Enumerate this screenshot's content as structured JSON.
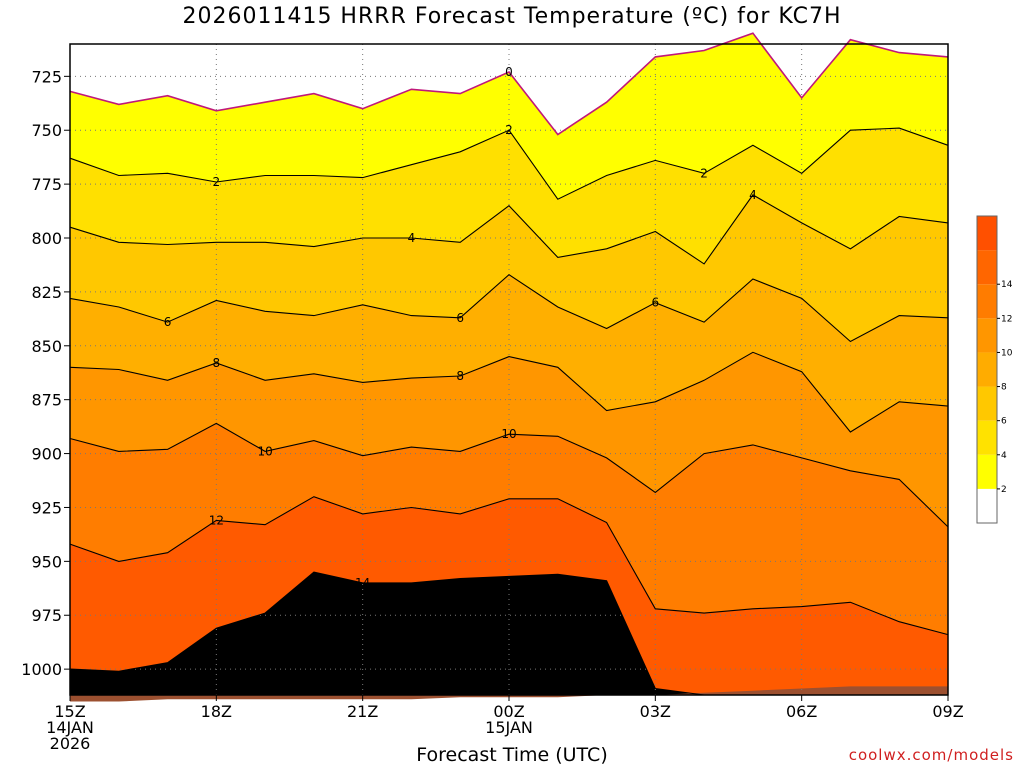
{
  "title": "2026011415 HRRR Forecast Temperature (ºC) for KC7H",
  "xlabel": "Forecast Time (UTC)",
  "credit": "coolwx.com/models",
  "chart_data": {
    "type": "contour",
    "title": "2026011415 HRRR Forecast Temperature (ºC) for KC7H",
    "xlabel": "Forecast Time (UTC)",
    "ylabel": "",
    "x_hours": [
      0,
      1,
      2,
      3,
      4,
      5,
      6,
      7,
      8,
      9,
      10,
      11,
      12,
      13,
      14,
      15,
      16,
      17,
      18
    ],
    "ylim": [
      1012,
      710
    ],
    "xlim": [
      0,
      18
    ],
    "y_ticks": [
      725,
      750,
      775,
      800,
      825,
      850,
      875,
      900,
      925,
      950,
      975,
      1000
    ],
    "x_ticks": [
      {
        "h": 0,
        "lines": [
          "15Z",
          "14JAN",
          "2026"
        ]
      },
      {
        "h": 3,
        "lines": [
          "18Z"
        ]
      },
      {
        "h": 6,
        "lines": [
          "21Z"
        ]
      },
      {
        "h": 9,
        "lines": [
          "00Z",
          "15JAN"
        ]
      },
      {
        "h": 12,
        "lines": [
          "03Z"
        ]
      },
      {
        "h": 15,
        "lines": [
          "06Z"
        ]
      },
      {
        "h": 18,
        "lines": [
          "09Z"
        ]
      }
    ],
    "grid": true,
    "contour_levels": [
      0,
      2,
      4,
      6,
      8,
      10,
      12,
      14
    ],
    "contours": [
      {
        "level": 0,
        "p": [
          732,
          738,
          734,
          741,
          737,
          733,
          740,
          731,
          733,
          723,
          752,
          737,
          716,
          713,
          705,
          735,
          708,
          714,
          716
        ]
      },
      {
        "level": 2,
        "p": [
          763,
          771,
          770,
          774,
          771,
          771,
          772,
          766,
          760,
          750,
          782,
          771,
          764,
          770,
          757,
          770,
          750,
          749,
          757
        ]
      },
      {
        "level": 4,
        "p": [
          795,
          802,
          803,
          802,
          802,
          804,
          800,
          800,
          802,
          785,
          809,
          805,
          797,
          812,
          780,
          793,
          805,
          790,
          793
        ]
      },
      {
        "level": 6,
        "p": [
          828,
          832,
          839,
          829,
          834,
          836,
          831,
          836,
          837,
          817,
          832,
          842,
          830,
          839,
          819,
          828,
          848,
          836,
          837
        ]
      },
      {
        "level": 8,
        "p": [
          860,
          861,
          866,
          858,
          866,
          863,
          867,
          865,
          864,
          855,
          860,
          880,
          876,
          866,
          853,
          862,
          890,
          876,
          878
        ]
      },
      {
        "level": 10,
        "p": [
          893,
          899,
          898,
          886,
          899,
          894,
          901,
          897,
          899,
          891,
          892,
          902,
          918,
          900,
          896,
          902,
          908,
          912,
          934
        ]
      },
      {
        "level": 12,
        "p": [
          942,
          950,
          946,
          931,
          933,
          920,
          928,
          925,
          928,
          921,
          921,
          932,
          972,
          974,
          972,
          971,
          969,
          978,
          984
        ]
      },
      {
        "level": 14,
        "p": [
          1000,
          1001,
          997,
          981,
          974,
          955,
          960,
          960,
          958,
          957,
          956,
          959,
          1009,
          1012,
          1012,
          1012,
          1012,
          1012,
          1012
        ]
      }
    ],
    "contour_labels": [
      {
        "level": 0,
        "text": "0",
        "h": 9.0
      },
      {
        "level": 2,
        "text": "2",
        "h": 9.0
      },
      {
        "level": 2,
        "text": "2",
        "h": 3.0
      },
      {
        "level": 2,
        "text": "2",
        "h": 13.0
      },
      {
        "level": 4,
        "text": "4",
        "h": 7.0
      },
      {
        "level": 4,
        "text": "4",
        "h": 14.0
      },
      {
        "level": 6,
        "text": "6",
        "h": 2.0
      },
      {
        "level": 6,
        "text": "6",
        "h": 8.0
      },
      {
        "level": 6,
        "text": "6",
        "h": 12.0
      },
      {
        "level": 8,
        "text": "8",
        "h": 3.0
      },
      {
        "level": 8,
        "text": "8",
        "h": 8.0
      },
      {
        "level": 10,
        "text": "10",
        "h": 4.0
      },
      {
        "level": 10,
        "text": "10",
        "h": 9.0
      },
      {
        "level": 12,
        "text": "12",
        "h": 3.0
      },
      {
        "level": 14,
        "text": "14",
        "h": 6.0
      }
    ],
    "ground_p": [
      1015,
      1015,
      1014,
      1014,
      1014,
      1014,
      1014,
      1014,
      1013,
      1013,
      1013,
      1012,
      1012,
      1011,
      1010,
      1009,
      1008,
      1008,
      1008
    ],
    "colorbar": {
      "labels": [
        "2",
        "4",
        "6",
        "8",
        "10",
        "12",
        "14"
      ],
      "colors": [
        "#ffffff",
        "#ffff00",
        "#ffe200",
        "#ffc800",
        "#ffac00",
        "#ff9600",
        "#ff7c00",
        "#ff6600",
        "#ff5000"
      ]
    },
    "fill_colors": [
      "#ffffff",
      "#ffff00",
      "#ffe000",
      "#ffc800",
      "#ffaf00",
      "#ff9600",
      "#ff7d00",
      "#ff5a00"
    ],
    "ground_color": "#9c5030",
    "zero_line_color": "#c0187a"
  }
}
